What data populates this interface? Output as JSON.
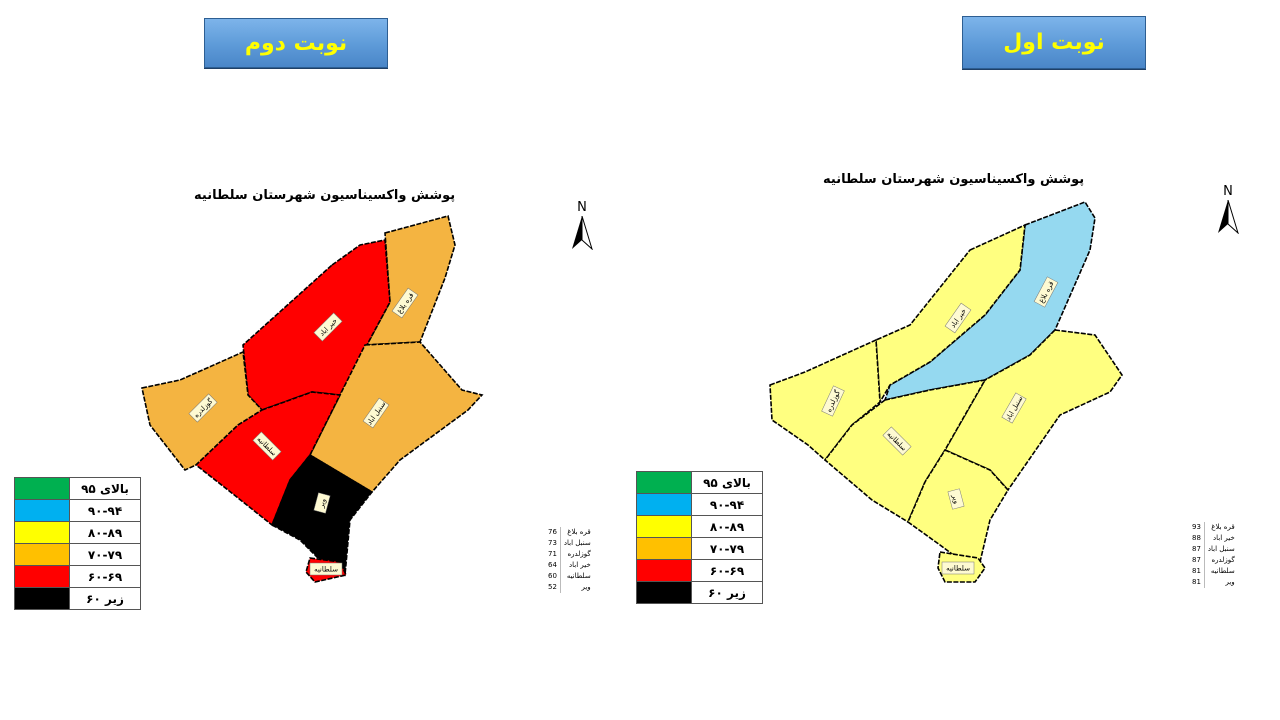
{
  "banners": {
    "left": "نوبت دوم",
    "right": "نوبت اول"
  },
  "map_title": "پوشش واکسیناسیون شهرستان سلطانیه",
  "north_label": "N",
  "legend": [
    {
      "label": "بالای ۹۵",
      "color": "#00b050"
    },
    {
      "label": "۹۰-۹۴",
      "color": "#00b0f0"
    },
    {
      "label": "۸۰-۸۹",
      "color": "#ffff00"
    },
    {
      "label": "۷۰-۷۹",
      "color": "#ffc000"
    },
    {
      "label": "۶۰-۶۹",
      "color": "#ff0000"
    },
    {
      "label": "زیر ۶۰",
      "color": "#000000"
    }
  ],
  "region_names": {
    "gharebolagh": "قره بلاغ",
    "kheirabad": "خیر اباد",
    "sonbolabad": "سنبل اباد",
    "gozaldare": "گوزلدره",
    "soltanieh": "سلطانیه",
    "vir": "ویر"
  },
  "round2": {
    "fills": {
      "gharebolagh": "#f4b441",
      "kheirabad": "#ff0000",
      "sonbolabad": "#f4b441",
      "gozaldare": "#f4b441",
      "soltanieh": "#ff0000",
      "vir": "#000000"
    },
    "table": [
      {
        "name": "قره بلاغ",
        "value": "76"
      },
      {
        "name": "سنبل اباد",
        "value": "73"
      },
      {
        "name": "گوزلدره",
        "value": "71"
      },
      {
        "name": "خیر اباد",
        "value": "64"
      },
      {
        "name": "سلطانیه",
        "value": "60"
      },
      {
        "name": "ویر",
        "value": "52"
      }
    ]
  },
  "round1": {
    "fills": {
      "gharebolagh": "#95d9f0",
      "kheirabad": "#ffff80",
      "sonbolabad": "#ffff80",
      "gozaldare": "#ffff80",
      "soltanieh": "#ffff80",
      "vir": "#ffff80"
    },
    "table": [
      {
        "name": "قره بلاغ",
        "value": "93"
      },
      {
        "name": "خیر اباد",
        "value": "88"
      },
      {
        "name": "سنبل اباد",
        "value": "87"
      },
      {
        "name": "گوزلدره",
        "value": "87"
      },
      {
        "name": "سلطانیه",
        "value": "81"
      },
      {
        "name": "ویر",
        "value": "81"
      }
    ]
  }
}
